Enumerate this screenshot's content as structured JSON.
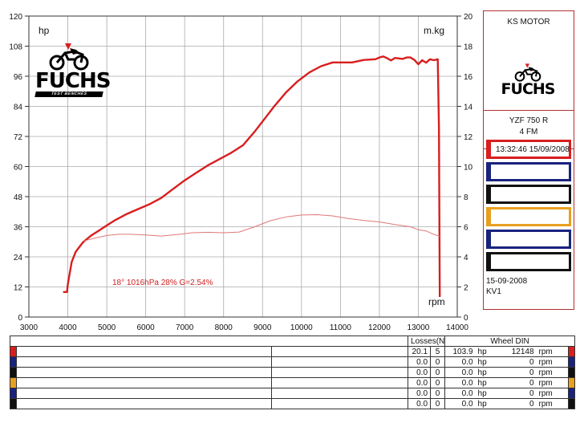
{
  "colors": {
    "power_curve": "#d81e1e",
    "torque_curve": "#e07878",
    "grid": "#aaaaaa",
    "run_colors": [
      "#d81e1e",
      "#1a237e",
      "#111111",
      "#e8a020",
      "#1a237e",
      "#111111"
    ]
  },
  "chart_data": {
    "type": "line",
    "title": "",
    "xlabel": "rpm",
    "ylabel": "hp",
    "y2label": "m.kg",
    "xlim": [
      3000,
      14000
    ],
    "ylim": [
      0,
      120
    ],
    "y2lim": [
      0,
      20
    ],
    "x_ticks": [
      3000,
      4000,
      5000,
      6000,
      7000,
      8000,
      9000,
      10000,
      11000,
      12000,
      13000,
      14000
    ],
    "y_ticks": [
      0,
      12,
      24,
      36,
      48,
      60,
      72,
      84,
      96,
      108,
      120
    ],
    "y2_ticks": [
      0,
      2,
      4,
      6,
      8,
      10,
      12,
      14,
      16,
      18,
      20
    ],
    "grid": true,
    "series": [
      {
        "axis": "left",
        "x": [
          3880,
          3980,
          4000,
          4100,
          4200,
          4300,
          4400,
          4600,
          4800,
          5000,
          5200,
          5500,
          5800,
          6100,
          6400,
          6700,
          7000,
          7300,
          7600,
          7900,
          8200,
          8500,
          8800,
          9000,
          9300,
          9600,
          9900,
          10200,
          10500,
          10800,
          11000,
          11300,
          11600,
          11900,
          12000,
          12100,
          12200,
          12300,
          12400,
          12500,
          12600,
          12700,
          12800,
          12900,
          13000,
          13100,
          13200,
          13300,
          13400,
          13500,
          13530,
          13550
        ],
        "y": [
          10,
          10,
          13,
          22,
          26,
          28,
          30,
          32.5,
          34.5,
          36.5,
          38.5,
          41,
          43,
          45,
          47.5,
          51,
          54.5,
          57.5,
          60.5,
          63,
          65.5,
          68.5,
          74,
          78,
          84,
          89.5,
          94,
          97.5,
          100,
          101.5,
          101.5,
          101.5,
          102.5,
          102.8,
          103.5,
          103.9,
          103.2,
          102.3,
          103.3,
          103.1,
          102.9,
          103.5,
          103.5,
          102.5,
          100.8,
          102.4,
          101.4,
          102.8,
          102.4,
          102.8,
          75,
          8
        ]
      },
      {
        "axis": "right",
        "x": [
          4400,
          4700,
          5000,
          5300,
          5600,
          6000,
          6400,
          6800,
          7200,
          7600,
          8000,
          8400,
          8800,
          9200,
          9600,
          10000,
          10400,
          10800,
          11200,
          11600,
          12000,
          12400,
          12800,
          13000,
          13200,
          13400,
          13550
        ],
        "y": [
          5.05,
          5.25,
          5.42,
          5.5,
          5.5,
          5.45,
          5.38,
          5.48,
          5.6,
          5.63,
          5.6,
          5.65,
          6.0,
          6.4,
          6.65,
          6.78,
          6.8,
          6.72,
          6.55,
          6.42,
          6.32,
          6.15,
          6.0,
          5.8,
          5.72,
          5.5,
          5.35
        ]
      }
    ],
    "annotation": "18°  1016hPa  28%    G=2.54%"
  },
  "info": {
    "company": "KS MOTOR",
    "model": "YZF 750 R",
    "gear": "4 FM",
    "run1_label": "13:32:46  15/09/2008",
    "date": "15-09-2008",
    "code": "KV1"
  },
  "logo": {
    "word": "FUCHS",
    "sub": "TEST BENCHES"
  },
  "table": {
    "losses_header": "Losses(N.m)",
    "wheel_header": "Wheel DIN",
    "hp_unit": "hp",
    "rpm_unit": "rpm",
    "rows": [
      {
        "loss": "20.1",
        "n": "5",
        "hp": "103.9",
        "rpm": "12148"
      },
      {
        "loss": "0.0",
        "n": "0",
        "hp": "0.0",
        "rpm": "0"
      },
      {
        "loss": "0.0",
        "n": "0",
        "hp": "0.0",
        "rpm": "0"
      },
      {
        "loss": "0.0",
        "n": "0",
        "hp": "0.0",
        "rpm": "0"
      },
      {
        "loss": "0.0",
        "n": "0",
        "hp": "0.0",
        "rpm": "0"
      },
      {
        "loss": "0.0",
        "n": "0",
        "hp": "0.0",
        "rpm": "0"
      }
    ]
  }
}
